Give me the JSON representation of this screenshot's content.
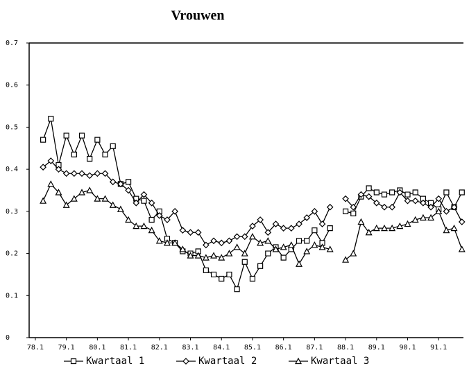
{
  "chart_data": {
    "type": "line",
    "title": "Vrouwen",
    "x": [
      78.25,
      78.5,
      78.75,
      79,
      79.25,
      79.5,
      79.75,
      80,
      80.25,
      80.5,
      80.75,
      81,
      81.25,
      81.5,
      81.75,
      82,
      82.25,
      82.5,
      82.75,
      83,
      83.25,
      83.5,
      83.75,
      84,
      84.25,
      84.5,
      84.75,
      85,
      85.25,
      85.5,
      85.75,
      86,
      86.25,
      86.5,
      86.75,
      87,
      87.25,
      87.5,
      87.75,
      88,
      88.25,
      88.5,
      88.75,
      89,
      89.25,
      89.5,
      89.75,
      90,
      90.25,
      90.5,
      90.75,
      91,
      91.25,
      91.5,
      91.75
    ],
    "series": [
      {
        "name": "Kwartaal 1",
        "color": "#000000",
        "marker": "square",
        "values": [
          0.47,
          0.52,
          0.41,
          0.48,
          0.435,
          0.48,
          0.425,
          0.47,
          0.435,
          0.455,
          0.365,
          0.37,
          0.33,
          0.325,
          0.28,
          0.3,
          0.235,
          0.225,
          0.205,
          0.2,
          0.205,
          0.16,
          0.15,
          0.14,
          0.15,
          0.115,
          0.18,
          0.14,
          0.17,
          0.2,
          0.215,
          0.19,
          0.21,
          0.23,
          0.23,
          0.255,
          0.225,
          0.26,
          null,
          0.3,
          0.295,
          0.335,
          0.355,
          0.345,
          0.34,
          0.345,
          0.35,
          0.34,
          0.345,
          0.33,
          0.32,
          0.305,
          0.345,
          0.31,
          0.345
        ]
      },
      {
        "name": "Kwartaal 2",
        "color": "#000000",
        "marker": "diamond",
        "values": [
          0.405,
          0.42,
          0.4,
          0.39,
          0.39,
          0.39,
          0.385,
          0.39,
          0.39,
          0.37,
          0.365,
          0.35,
          0.32,
          0.34,
          0.32,
          0.29,
          0.28,
          0.3,
          0.255,
          0.25,
          0.25,
          0.22,
          0.23,
          0.225,
          0.23,
          0.24,
          0.24,
          0.265,
          0.28,
          0.25,
          0.27,
          0.26,
          0.26,
          0.27,
          0.285,
          0.3,
          0.27,
          0.31,
          null,
          0.33,
          0.31,
          0.34,
          0.335,
          0.32,
          0.31,
          0.31,
          0.345,
          0.325,
          0.325,
          0.32,
          0.31,
          0.33,
          0.3,
          0.31,
          0.275
        ]
      },
      {
        "name": "Kwartaal 3",
        "color": "#000000",
        "marker": "triangle",
        "values": [
          0.325,
          0.365,
          0.345,
          0.315,
          0.33,
          0.345,
          0.35,
          0.33,
          0.33,
          0.315,
          0.305,
          0.28,
          0.265,
          0.265,
          0.255,
          0.23,
          0.225,
          0.225,
          0.21,
          0.195,
          0.195,
          0.19,
          0.195,
          0.19,
          0.2,
          0.215,
          0.2,
          0.24,
          0.225,
          0.23,
          0.21,
          0.215,
          0.22,
          0.175,
          0.205,
          0.22,
          0.215,
          0.21,
          null,
          0.185,
          0.2,
          0.275,
          0.25,
          0.26,
          0.26,
          0.26,
          0.265,
          0.27,
          0.28,
          0.285,
          0.285,
          0.3,
          0.255,
          0.26,
          0.21
        ]
      }
    ],
    "xlim": [
      77.8,
      91.8
    ],
    "xticks": [
      {
        "value": 78,
        "label": "78.1"
      },
      {
        "value": 79,
        "label": "79.1"
      },
      {
        "value": 80,
        "label": "80.1"
      },
      {
        "value": 81,
        "label": "81.1"
      },
      {
        "value": 82,
        "label": "82.1"
      },
      {
        "value": 83,
        "label": "83.1"
      },
      {
        "value": 84,
        "label": "84.1"
      },
      {
        "value": 85,
        "label": "85.1"
      },
      {
        "value": 86,
        "label": "86.1"
      },
      {
        "value": 87,
        "label": "87.1"
      },
      {
        "value": 88,
        "label": "88.1"
      },
      {
        "value": 89,
        "label": "89.1"
      },
      {
        "value": 90,
        "label": "90.1"
      },
      {
        "value": 91,
        "label": "91.1"
      }
    ],
    "ylim": [
      0,
      0.7
    ],
    "yticks": [
      0,
      0.1,
      0.2,
      0.3,
      0.4,
      0.5,
      0.6,
      0.7
    ]
  }
}
